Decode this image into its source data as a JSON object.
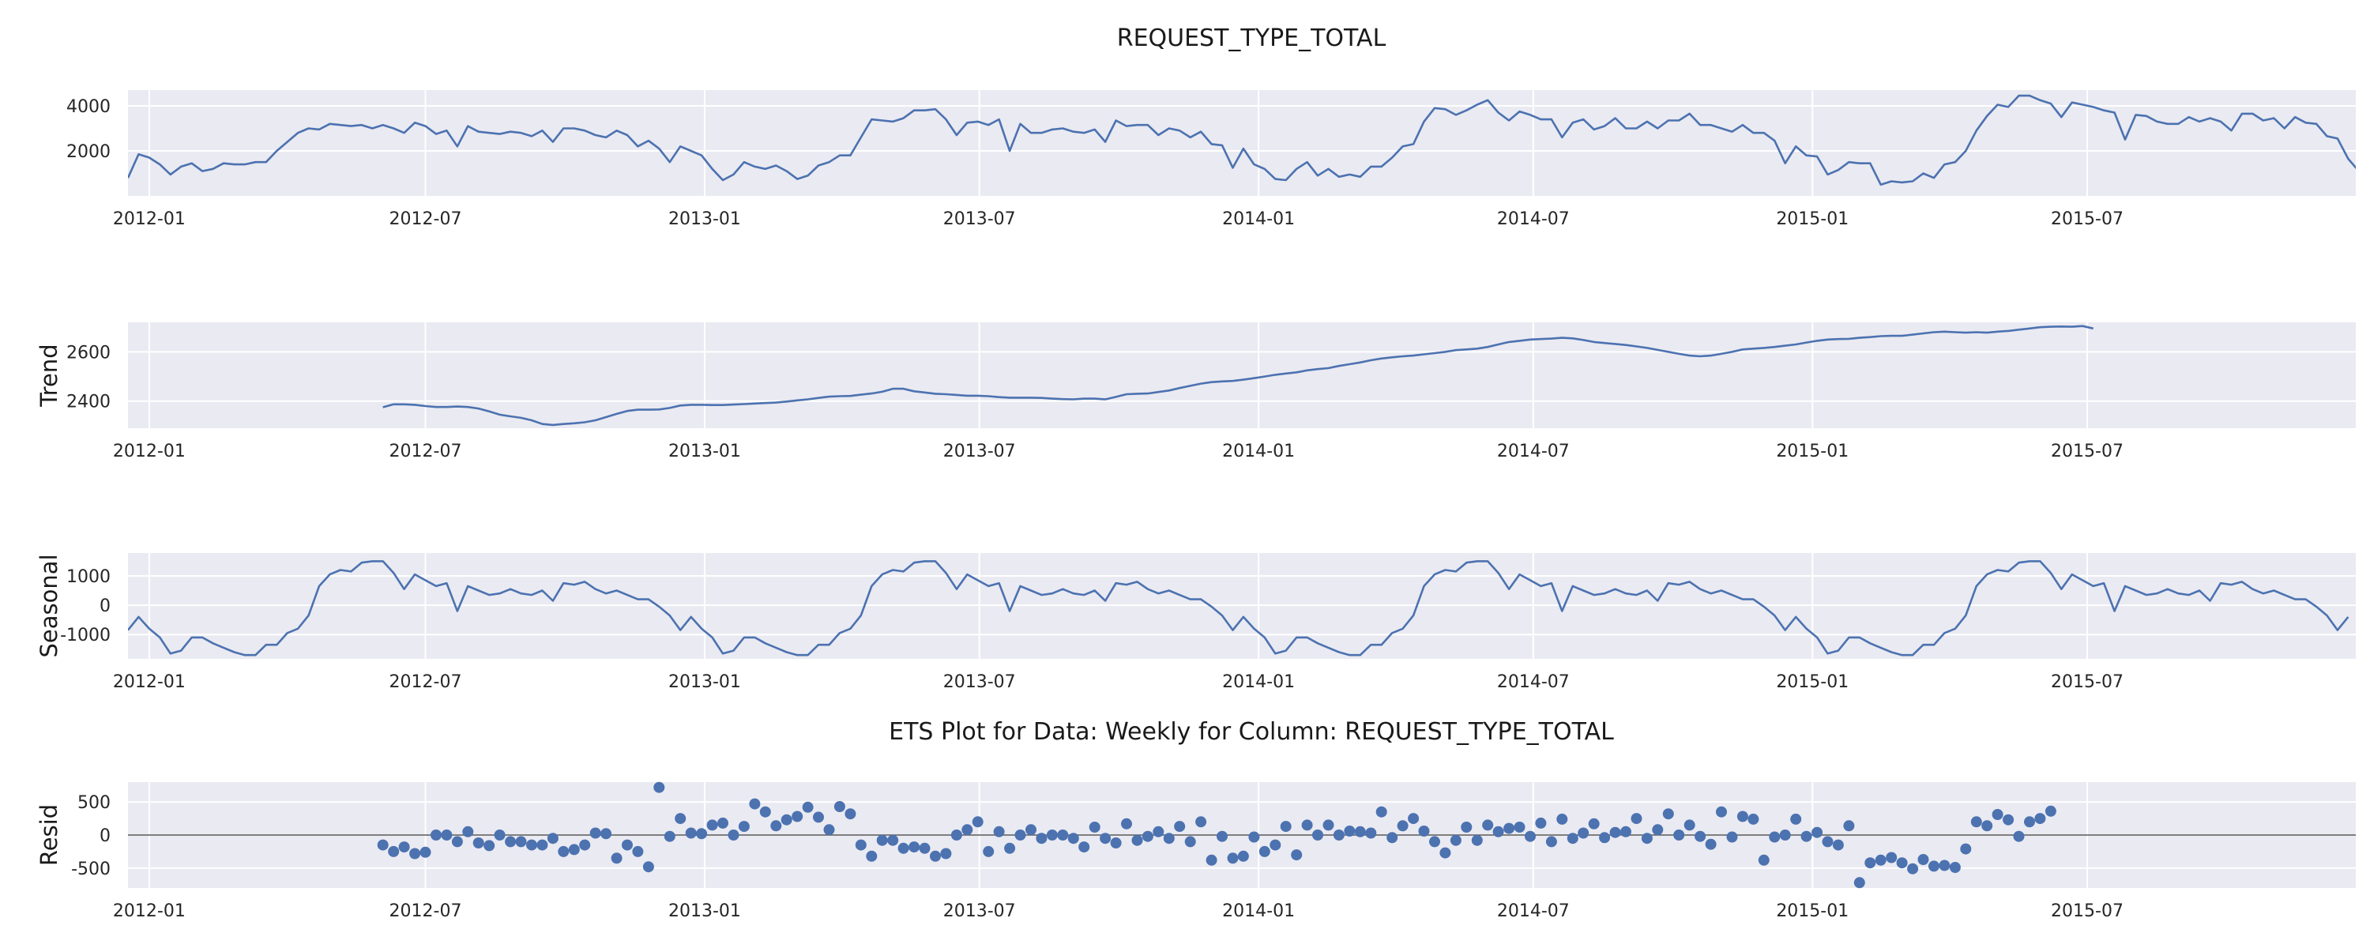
{
  "figure": {
    "suptitle": "REQUEST_TYPE_TOTAL",
    "resid_title": "ETS Plot for Data: Weekly for Column: REQUEST_TYPE_TOTAL"
  },
  "chart_data": [
    {
      "type": "line",
      "name": "observed",
      "title": "REQUEST_TYPE_TOTAL",
      "ylabel": "",
      "xlim": [
        "2011-12-18",
        "2015-12-25"
      ],
      "ylim": [
        0,
        4700
      ],
      "yticks": [
        2000,
        4000
      ],
      "xticks": [
        "2012-01",
        "2012-07",
        "2013-01",
        "2013-07",
        "2014-01",
        "2014-07",
        "2015-01",
        "2015-07"
      ],
      "grid": true,
      "x_start": "2011-12-18",
      "x_step_days": 7,
      "values": [
        800,
        1850,
        1700,
        1400,
        950,
        1300,
        1450,
        1100,
        1200,
        1450,
        1400,
        1400,
        1500,
        1500,
        2000,
        2400,
        2800,
        3000,
        2950,
        3200,
        3150,
        3100,
        3150,
        3000,
        3150,
        3000,
        2800,
        3250,
        3100,
        2750,
        2900,
        2200,
        3100,
        2850,
        2800,
        2750,
        2850,
        2800,
        2650,
        2900,
        2400,
        3000,
        3000,
        2900,
        2700,
        2600,
        2900,
        2700,
        2200,
        2450,
        2100,
        1500,
        2200,
        2000,
        1800,
        1200,
        700,
        950,
        1500,
        1300,
        1200,
        1350,
        1100,
        750,
        900,
        1350,
        1500,
        1800,
        1800,
        2600,
        3400,
        3350,
        3300,
        3450,
        3800,
        3800,
        3850,
        3400,
        2700,
        3250,
        3300,
        3150,
        3400,
        2000,
        3200,
        2800,
        2800,
        2950,
        3000,
        2850,
        2800,
        2950,
        2400,
        3350,
        3100,
        3150,
        3150,
        2700,
        3000,
        2900,
        2600,
        2850,
        2300,
        2250,
        1250,
        2100,
        1400,
        1200,
        750,
        700,
        1200,
        1500,
        900,
        1200,
        850,
        950,
        850,
        1300,
        1300,
        1700,
        2200,
        2300,
        3300,
        3900,
        3850,
        3600,
        3800,
        4050,
        4250,
        3700,
        3350,
        3750,
        3600,
        3400,
        3400,
        2600,
        3250,
        3400,
        2950,
        3100,
        3450,
        3000,
        3000,
        3300,
        3000,
        3350,
        3350,
        3650,
        3150,
        3150,
        3000,
        2850,
        3150,
        2800,
        2800,
        2450,
        1450,
        2200,
        1800,
        1750,
        950,
        1150,
        1500,
        1450,
        1450,
        500,
        650,
        600,
        650,
        1000,
        800,
        1400,
        1500,
        2000,
        2900,
        3550,
        4050,
        3950,
        4450,
        4450,
        4250,
        4100,
        3500,
        4150,
        4050,
        3950,
        3800,
        3700,
        2500,
        3600,
        3550,
        3300,
        3200,
        3200,
        3500,
        3300,
        3450,
        3300,
        2900,
        3650,
        3650,
        3350,
        3450,
        3000,
        3500,
        3250,
        3200,
        2650,
        2550,
        1650,
        1100
      ]
    },
    {
      "type": "line",
      "name": "trend",
      "title": "",
      "ylabel": "Trend",
      "xlim": [
        "2011-12-18",
        "2015-12-25"
      ],
      "ylim": [
        2290,
        2720
      ],
      "yticks": [
        2400,
        2600
      ],
      "xticks": [
        "2012-01",
        "2012-07",
        "2013-01",
        "2013-07",
        "2014-01",
        "2014-07",
        "2015-01",
        "2015-07"
      ],
      "grid": true,
      "x_start": "2012-06-03",
      "x_step_days": 7,
      "values": [
        2375,
        2387,
        2387,
        2385,
        2380,
        2376,
        2376,
        2378,
        2376,
        2370,
        2358,
        2345,
        2338,
        2332,
        2322,
        2307,
        2303,
        2307,
        2310,
        2314,
        2322,
        2335,
        2348,
        2360,
        2365,
        2365,
        2366,
        2372,
        2382,
        2385,
        2385,
        2384,
        2384,
        2386,
        2388,
        2390,
        2392,
        2394,
        2398,
        2403,
        2407,
        2413,
        2418,
        2420,
        2421,
        2426,
        2431,
        2438,
        2450,
        2450,
        2440,
        2435,
        2430,
        2428,
        2425,
        2422,
        2422,
        2420,
        2416,
        2414,
        2414,
        2414,
        2413,
        2410,
        2408,
        2407,
        2410,
        2410,
        2407,
        2417,
        2428,
        2430,
        2431,
        2437,
        2443,
        2453,
        2462,
        2471,
        2477,
        2480,
        2482,
        2487,
        2493,
        2500,
        2507,
        2512,
        2517,
        2525,
        2530,
        2534,
        2543,
        2550,
        2557,
        2566,
        2573,
        2578,
        2582,
        2585,
        2590,
        2595,
        2600,
        2607,
        2610,
        2613,
        2620,
        2630,
        2640,
        2645,
        2650,
        2652,
        2654,
        2657,
        2655,
        2648,
        2640,
        2636,
        2632,
        2628,
        2622,
        2616,
        2608,
        2600,
        2592,
        2585,
        2582,
        2585,
        2592,
        2600,
        2610,
        2613,
        2616,
        2620,
        2625,
        2630,
        2638,
        2645,
        2650,
        2652,
        2653,
        2657,
        2660,
        2664,
        2665,
        2665,
        2670,
        2675,
        2680,
        2682,
        2680,
        2678,
        2680,
        2678,
        2682,
        2685,
        2690,
        2695,
        2700,
        2702,
        2703,
        2702,
        2705,
        2695
      ]
    },
    {
      "type": "line",
      "name": "seasonal",
      "title": "",
      "ylabel": "Seasonal",
      "xlim": [
        "2011-12-18",
        "2015-12-25"
      ],
      "ylim": [
        -1830,
        1780
      ],
      "yticks": [
        -1000,
        0,
        1000
      ],
      "xticks": [
        "2012-01",
        "2012-07",
        "2013-01",
        "2013-07",
        "2014-01",
        "2014-07",
        "2015-01",
        "2015-07"
      ],
      "grid": true,
      "x_start": "2011-12-18",
      "x_step_days": 7,
      "values": [
        -850,
        -400,
        -800,
        -1100,
        -1650,
        -1550,
        -1100,
        -1100,
        -1300,
        -1450,
        -1600,
        -1700,
        -1700,
        -1350,
        -1350,
        -950,
        -800,
        -350,
        650,
        1050,
        1200,
        1150,
        1450,
        1500,
        1500,
        1100,
        550,
        1050,
        850,
        650,
        750,
        -200,
        650,
        500,
        350,
        400,
        550,
        400,
        350,
        500,
        150,
        750,
        700,
        800,
        550,
        400,
        500,
        350,
        200,
        200,
        -50,
        -350,
        -850,
        -400,
        -800,
        -1100,
        -1650,
        -1550,
        -1100,
        -1100,
        -1300,
        -1450,
        -1600,
        -1700,
        -1700,
        -1350,
        -1350,
        -950,
        -800,
        -350,
        650,
        1050,
        1200,
        1150,
        1450,
        1500,
        1500,
        1100,
        550,
        1050,
        850,
        650,
        750,
        -200,
        650,
        500,
        350,
        400,
        550,
        400,
        350,
        500,
        150,
        750,
        700,
        800,
        550,
        400,
        500,
        350,
        200,
        200,
        -50,
        -350,
        -850,
        -400,
        -800,
        -1100,
        -1650,
        -1550,
        -1100,
        -1100,
        -1300,
        -1450,
        -1600,
        -1700,
        -1700,
        -1350,
        -1350,
        -950,
        -800,
        -350,
        650,
        1050,
        1200,
        1150,
        1450,
        1500,
        1500,
        1100,
        550,
        1050,
        850,
        650,
        750,
        -200,
        650,
        500,
        350,
        400,
        550,
        400,
        350,
        500,
        150,
        750,
        700,
        800,
        550,
        400,
        500,
        350,
        200,
        200,
        -50,
        -350,
        -850,
        -400,
        -800,
        -1100,
        -1650,
        -1550,
        -1100,
        -1100,
        -1300,
        -1450,
        -1600,
        -1700,
        -1700,
        -1350,
        -1350,
        -950,
        -800,
        -350,
        650,
        1050,
        1200,
        1150,
        1450,
        1500,
        1500,
        1100,
        550,
        1050,
        850,
        650,
        750,
        -200,
        650,
        500,
        350,
        400,
        550,
        400,
        350,
        500,
        150,
        750,
        700,
        800,
        550,
        400,
        500,
        350,
        200,
        200,
        -50,
        -350,
        -850,
        -400
      ]
    },
    {
      "type": "scatter",
      "name": "resid",
      "title": "ETS Plot for Data: Weekly for Column: REQUEST_TYPE_TOTAL",
      "ylabel": "Resid",
      "xlim": [
        "2011-12-18",
        "2015-12-25"
      ],
      "ylim": [
        -800,
        800
      ],
      "yticks": [
        -500,
        0,
        500
      ],
      "xticks": [
        "2012-01",
        "2012-07",
        "2013-01",
        "2013-07",
        "2014-01",
        "2014-07",
        "2015-01",
        "2015-07"
      ],
      "grid": true,
      "zero_line": true,
      "x_start": "2012-06-03",
      "x_step_days": 7,
      "values": [
        -150,
        -250,
        -180,
        -280,
        -260,
        0,
        0,
        -100,
        50,
        -120,
        -160,
        0,
        -100,
        -100,
        -150,
        -150,
        -50,
        -250,
        -220,
        -150,
        30,
        20,
        -350,
        -150,
        -250,
        -480,
        720,
        -20,
        250,
        30,
        20,
        150,
        180,
        0,
        130,
        470,
        350,
        140,
        230,
        280,
        420,
        270,
        80,
        430,
        320,
        -150,
        -320,
        -80,
        -80,
        -200,
        -180,
        -200,
        -320,
        -280,
        0,
        80,
        200,
        -250,
        50,
        -200,
        0,
        80,
        -50,
        0,
        0,
        -50,
        -180,
        120,
        -50,
        -120,
        170,
        -80,
        -20,
        50,
        -50,
        130,
        -100,
        200,
        -380,
        -20,
        -350,
        -320,
        -30,
        -250,
        -150,
        130,
        -300,
        150,
        0,
        150,
        0,
        60,
        50,
        30,
        350,
        -40,
        140,
        250,
        60,
        -100,
        -270,
        -80,
        120,
        -80,
        150,
        50,
        100,
        120,
        -20,
        180,
        -100,
        240,
        -50,
        30,
        170,
        -40,
        40,
        50,
        250,
        -50,
        80,
        320,
        0,
        150,
        -20,
        -140,
        350,
        -30,
        280,
        240,
        -380,
        -30,
        0,
        240,
        -20,
        40,
        -100,
        -150,
        140,
        -720,
        -420,
        -380,
        -340,
        -420,
        -510,
        -370,
        -470,
        -460,
        -490,
        -210,
        200,
        140,
        310,
        230,
        -20,
        200,
        250,
        360
      ]
    }
  ]
}
